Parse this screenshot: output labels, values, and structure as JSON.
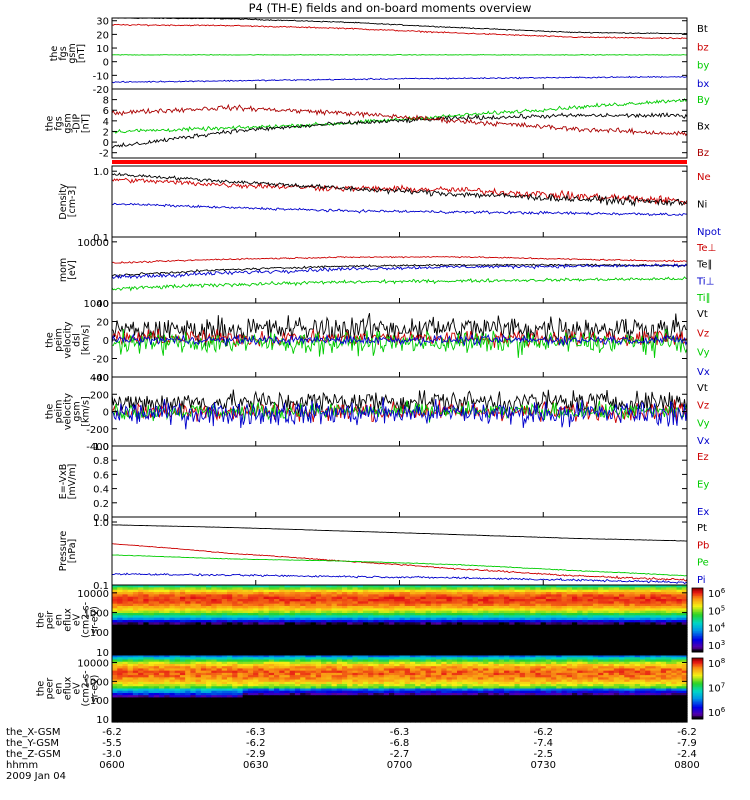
{
  "title": "P4 (TH-E) fields and on-board moments overview",
  "time_axis": {
    "ticks": [
      {
        "hhmm": "0600",
        "X": "-6.2",
        "Y": "-5.5",
        "Z": "-3.0"
      },
      {
        "hhmm": "0630",
        "X": "-6.3",
        "Y": "-6.2",
        "Z": "-2.9"
      },
      {
        "hhmm": "0700",
        "X": "-6.3",
        "Y": "-6.8",
        "Z": "-2.7"
      },
      {
        "hhmm": "0730",
        "X": "-6.2",
        "Y": "-7.4",
        "Z": "-2.5"
      },
      {
        "hhmm": "0800",
        "X": "-6.2",
        "Y": "-7.9",
        "Z": "-2.4"
      }
    ],
    "row_labels": [
      "the_X-GSM",
      "the_Y-GSM",
      "the_Z-GSM",
      "hhmm"
    ],
    "date": "2009 Jan 04"
  },
  "chart_data": [
    {
      "type": "line",
      "ylabel": [
        "the",
        "fgs",
        "gsm",
        "[nT]"
      ],
      "scale": "linear",
      "ylim": [
        -20,
        32
      ],
      "ticks": [
        "30",
        "20",
        "10",
        "0",
        "-10",
        "-20"
      ],
      "tick_values": [
        30,
        20,
        10,
        0,
        -10,
        -20
      ],
      "series": [
        {
          "name": "Bt",
          "color": "#000000",
          "points": [
            [
              0,
              32
            ],
            [
              0.2,
              31.5
            ],
            [
              0.4,
              29
            ],
            [
              0.6,
              25
            ],
            [
              0.8,
              21.5
            ],
            [
              1,
              20.5
            ]
          ],
          "noise": 0.3
        },
        {
          "name": "bz",
          "color": "#cc0000",
          "points": [
            [
              0,
              27
            ],
            [
              0.2,
              26.5
            ],
            [
              0.4,
              24.5
            ],
            [
              0.6,
              21
            ],
            [
              0.8,
              18
            ],
            [
              1,
              17
            ]
          ],
          "noise": 0.4
        },
        {
          "name": "by",
          "color": "#00cc00",
          "points": [
            [
              0,
              5
            ],
            [
              1,
              5
            ]
          ],
          "noise": 0.2
        },
        {
          "name": "bx",
          "color": "#0000cc",
          "points": [
            [
              0,
              -15
            ],
            [
              0.2,
              -14
            ],
            [
              0.5,
              -12.5
            ],
            [
              1,
              -11
            ]
          ],
          "noise": 0.4
        }
      ]
    },
    {
      "type": "line",
      "ylabel": [
        "the",
        "fgs",
        "gsm",
        "-DIP",
        "[nT]"
      ],
      "scale": "linear",
      "ylim": [
        -3,
        10
      ],
      "ticks": [
        "8",
        "6",
        "4",
        "2",
        "0",
        "-2"
      ],
      "tick_values": [
        8,
        6,
        4,
        2,
        0,
        -2
      ],
      "series": [
        {
          "name": "By",
          "color": "#00cc00",
          "points": [
            [
              0,
              2
            ],
            [
              0.2,
              2.6
            ],
            [
              0.4,
              3.5
            ],
            [
              0.6,
              5
            ],
            [
              0.8,
              6.5
            ],
            [
              1,
              8
            ]
          ],
          "noise": 0.3
        },
        {
          "name": "Bx",
          "color": "#000000",
          "points": [
            [
              0,
              -1
            ],
            [
              0.2,
              2
            ],
            [
              0.4,
              3.5
            ],
            [
              0.6,
              4.5
            ],
            [
              0.8,
              5
            ],
            [
              1,
              5
            ]
          ],
          "noise": 0.35
        },
        {
          "name": "Bz",
          "color": "#aa0000",
          "points": [
            [
              0,
              5.5
            ],
            [
              0.2,
              6.5
            ],
            [
              0.4,
              5.5
            ],
            [
              0.6,
              4
            ],
            [
              0.8,
              2.5
            ],
            [
              1,
              1.5
            ]
          ],
          "noise": 0.4
        }
      ]
    },
    {
      "type": "line",
      "ylabel": [
        "Density",
        "[cm-3]"
      ],
      "scale": "log",
      "ylim": [
        0.1,
        1.2
      ],
      "ticks": [
        "1.0",
        "0.1"
      ],
      "tick_values": [
        1.0,
        0.1
      ],
      "series": [
        {
          "name": "Ne",
          "color": "#cc0000",
          "points": [
            [
              0,
              0.75
            ],
            [
              0.2,
              0.62
            ],
            [
              0.4,
              0.55
            ],
            [
              0.6,
              0.52
            ],
            [
              0.8,
              0.42
            ],
            [
              1,
              0.35
            ]
          ],
          "noise": 0.05
        },
        {
          "name": "Ni",
          "color": "#000000",
          "points": [
            [
              0,
              0.9
            ],
            [
              0.2,
              0.7
            ],
            [
              0.4,
              0.55
            ],
            [
              0.6,
              0.45
            ],
            [
              0.8,
              0.38
            ],
            [
              1,
              0.33
            ]
          ],
          "noise": 0.04
        },
        {
          "name": "Npot",
          "color": "#0000cc",
          "points": [
            [
              0,
              0.32
            ],
            [
              0.2,
              0.28
            ],
            [
              0.4,
              0.25
            ],
            [
              0.6,
              0.24
            ],
            [
              0.8,
              0.23
            ],
            [
              1,
              0.22
            ]
          ],
          "noise": 0.01
        }
      ]
    },
    {
      "type": "line",
      "ylabel": [
        "mom",
        "[eV]"
      ],
      "scale": "log",
      "ylim": [
        1000,
        12000
      ],
      "ticks": [
        "10000",
        "1000"
      ],
      "tick_values": [
        10000,
        1000
      ],
      "series": [
        {
          "name": "Te⊥",
          "color": "#cc0000",
          "points": [
            [
              0,
              4500
            ],
            [
              0.2,
              5200
            ],
            [
              0.4,
              5600
            ],
            [
              0.6,
              5700
            ],
            [
              0.8,
              5200
            ],
            [
              1,
              4800
            ]
          ],
          "noise": 120
        },
        {
          "name": "Te∥",
          "color": "#000000",
          "points": [
            [
              0,
              2800
            ],
            [
              0.2,
              3500
            ],
            [
              0.4,
              4000
            ],
            [
              0.6,
              4200
            ],
            [
              0.8,
              4200
            ],
            [
              1,
              4100
            ]
          ],
          "noise": 120
        },
        {
          "name": "Ti⊥",
          "color": "#0000cc",
          "points": [
            [
              0,
              2600
            ],
            [
              0.2,
              3100
            ],
            [
              0.4,
              3600
            ],
            [
              0.6,
              3900
            ],
            [
              0.8,
              4000
            ],
            [
              1,
              4100
            ]
          ],
          "noise": 200
        },
        {
          "name": "Ti∥",
          "color": "#00cc00",
          "points": [
            [
              0,
              1700
            ],
            [
              0.2,
              2000
            ],
            [
              0.4,
              2200
            ],
            [
              0.6,
              2300
            ],
            [
              0.8,
              2400
            ],
            [
              1,
              2500
            ]
          ],
          "noise": 120
        }
      ]
    },
    {
      "type": "line",
      "ylabel": [
        "the",
        "peim",
        "velocity",
        "dsl",
        "[km/s]"
      ],
      "scale": "linear",
      "ylim": [
        -40,
        40
      ],
      "ticks": [
        "40",
        "20",
        "0",
        "-20",
        "-40"
      ],
      "tick_values": [
        40,
        20,
        0,
        -20,
        -40
      ],
      "series": [
        {
          "name": "Vt",
          "color": "#000000",
          "points": [
            [
              0,
              10
            ],
            [
              0.5,
              13
            ],
            [
              1,
              12
            ]
          ],
          "noise": 12
        },
        {
          "name": "Vz",
          "color": "#cc0000",
          "points": [
            [
              0,
              2
            ],
            [
              1,
              2
            ]
          ],
          "noise": 7
        },
        {
          "name": "Vy",
          "color": "#00cc00",
          "points": [
            [
              0,
              -3
            ],
            [
              1,
              -3
            ]
          ],
          "noise": 10
        },
        {
          "name": "Vx",
          "color": "#0000cc",
          "points": [
            [
              0,
              0
            ],
            [
              1,
              0
            ]
          ],
          "noise": 4
        }
      ]
    },
    {
      "type": "line",
      "ylabel": [
        "the",
        "peim",
        "velocity",
        "gsm",
        "[km/s]"
      ],
      "scale": "linear",
      "ylim": [
        -400,
        400
      ],
      "ticks": [
        "400",
        "200",
        "0",
        "-200",
        "-400"
      ],
      "tick_values": [
        400,
        200,
        0,
        -200,
        -400
      ],
      "series": [
        {
          "name": "Vt",
          "color": "#000000",
          "points": [
            [
              0,
              100
            ],
            [
              0.5,
              120
            ],
            [
              1,
              110
            ]
          ],
          "noise": 110
        },
        {
          "name": "Vz",
          "color": "#cc0000",
          "points": [
            [
              0,
              0
            ],
            [
              1,
              0
            ]
          ],
          "noise": 90
        },
        {
          "name": "Vy",
          "color": "#00cc00",
          "points": [
            [
              0,
              0
            ],
            [
              1,
              0
            ]
          ],
          "noise": 80
        },
        {
          "name": "Vx",
          "color": "#0000cc",
          "points": [
            [
              0,
              -20
            ],
            [
              1,
              -20
            ]
          ],
          "noise": 120
        }
      ]
    },
    {
      "type": "line",
      "ylabel": [
        "E=-VxB",
        "[mV/m]"
      ],
      "scale": "linear",
      "ylim": [
        0,
        1
      ],
      "ticks": [
        "1.0",
        "0.8",
        "0.6",
        "0.4",
        "0.2",
        "0.0"
      ],
      "tick_values": [
        1,
        0.8,
        0.6,
        0.4,
        0.2,
        0
      ],
      "series": [
        {
          "name": "Ez",
          "color": "#cc0000",
          "points": []
        },
        {
          "name": "Ey",
          "color": "#00cc00",
          "points": []
        },
        {
          "name": "Ex",
          "color": "#0000cc",
          "points": []
        }
      ]
    },
    {
      "type": "line",
      "ylabel": [
        "Pressure",
        "[nPa]"
      ],
      "scale": "log",
      "ylim": [
        0.1,
        1.2
      ],
      "ticks": [
        "1.0",
        "0.1"
      ],
      "tick_values": [
        1.0,
        0.1
      ],
      "series": [
        {
          "name": "Pt",
          "color": "#000000",
          "points": [
            [
              0,
              0.9
            ],
            [
              0.2,
              0.82
            ],
            [
              0.4,
              0.72
            ],
            [
              0.6,
              0.63
            ],
            [
              0.8,
              0.55
            ],
            [
              1,
              0.5
            ]
          ],
          "noise": 0.003
        },
        {
          "name": "Pb",
          "color": "#cc0000",
          "points": [
            [
              0,
              0.45
            ],
            [
              0.2,
              0.32
            ],
            [
              0.4,
              0.24
            ],
            [
              0.6,
              0.18
            ],
            [
              0.8,
              0.14
            ],
            [
              1,
              0.12
            ]
          ],
          "noise": 0.004
        },
        {
          "name": "Pe",
          "color": "#00cc00",
          "points": [
            [
              0,
              0.3
            ],
            [
              0.2,
              0.26
            ],
            [
              0.4,
              0.24
            ],
            [
              0.6,
              0.21
            ],
            [
              0.8,
              0.17
            ],
            [
              1,
              0.14
            ]
          ],
          "noise": 0.002
        },
        {
          "name": "Pi",
          "color": "#0000cc",
          "points": [
            [
              0,
              0.15
            ],
            [
              0.3,
              0.14
            ],
            [
              0.6,
              0.13
            ],
            [
              1,
              0.11
            ]
          ],
          "noise": 0.004
        }
      ]
    },
    {
      "type": "heatmap",
      "ylabel": [
        "the",
        "peir",
        "en",
        "eflux",
        "eV",
        "(cm2-s-",
        "sr-eV)"
      ],
      "scale": "log",
      "ylim": [
        7,
        25000
      ],
      "ticks": [
        "10000",
        "1000",
        "100",
        "10"
      ],
      "tick_values": [
        10000,
        1000,
        100,
        10
      ],
      "colorbar_ticks": [
        "10^6",
        "10^5",
        "10^4",
        "10^3"
      ],
      "colorbar_range_log10": [
        3,
        6.5
      ],
      "peak_energy": 5000,
      "peak_log10": 6.2,
      "falloff": 2.2
    },
    {
      "type": "heatmap",
      "ylabel": [
        "the",
        "peer",
        "en",
        "eflux",
        "eV",
        "(cm2-s-",
        "sr-eV)"
      ],
      "scale": "log",
      "ylim": [
        7,
        25000
      ],
      "ticks": [
        "10000",
        "1000",
        "100",
        "10"
      ],
      "tick_values": [
        10000,
        1000,
        100,
        10
      ],
      "colorbar_ticks": [
        "10^8",
        "10^7",
        "10^6"
      ],
      "colorbar_range_log10": [
        5.8,
        8.3
      ],
      "peak_energy": 3000,
      "peak_log10": 8.0,
      "falloff": 1.2
    }
  ]
}
